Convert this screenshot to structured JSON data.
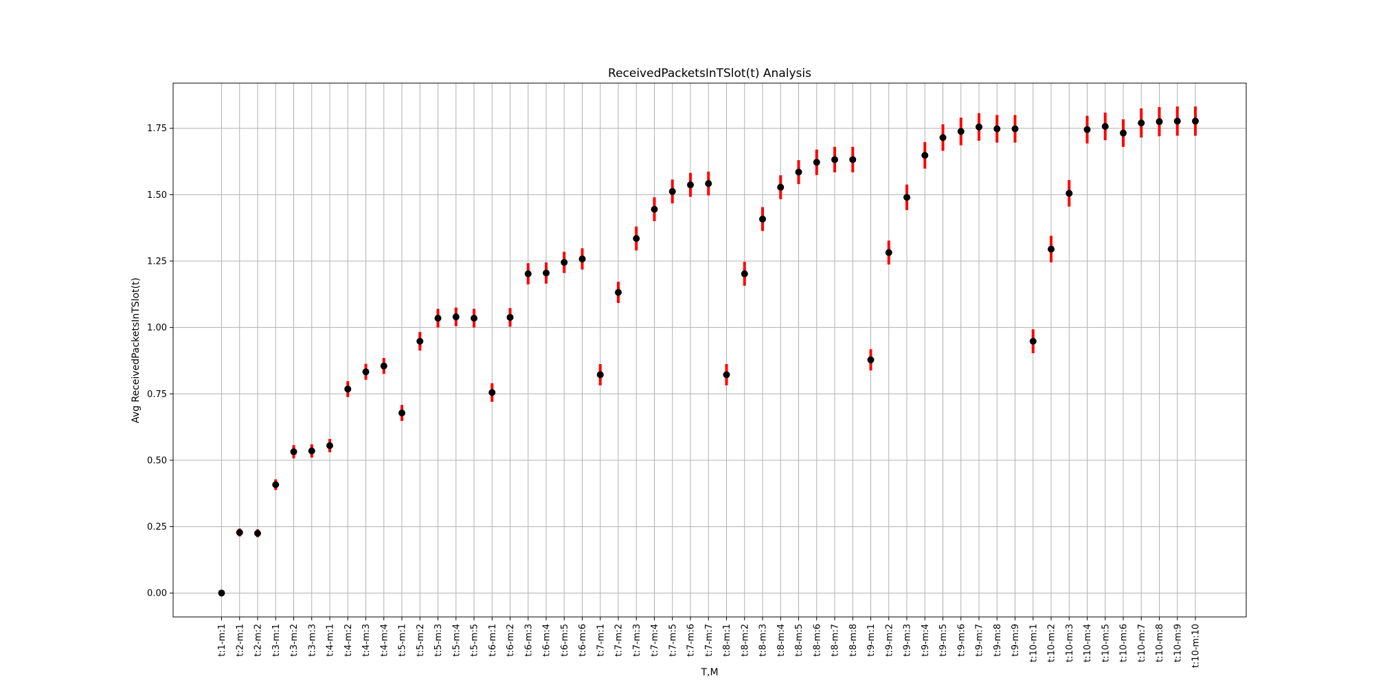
{
  "chart_data": {
    "type": "scatter",
    "title": "ReceivedPacketsInTSlot(t) Analysis",
    "xlabel": "T,M",
    "ylabel": "Avg ReceivedPacketsInTSlot(t)",
    "ylim": [
      -0.09,
      1.92
    ],
    "yticks": [
      0.0,
      0.25,
      0.5,
      0.75,
      1.0,
      1.25,
      1.5,
      1.75
    ],
    "ytick_labels": [
      "0.00",
      "0.25",
      "0.50",
      "0.75",
      "1.00",
      "1.25",
      "1.50",
      "1.75"
    ],
    "grid": true,
    "marker_color": "#000000",
    "errorbar_color": "#ff0000",
    "categories": [
      "t:1-m:1",
      "t:2-m:1",
      "t:2-m:2",
      "t:3-m:1",
      "t:3-m:2",
      "t:3-m:3",
      "t:4-m:1",
      "t:4-m:2",
      "t:4-m:3",
      "t:4-m:4",
      "t:5-m:1",
      "t:5-m:2",
      "t:5-m:3",
      "t:5-m:4",
      "t:5-m:5",
      "t:6-m:1",
      "t:6-m:2",
      "t:6-m:3",
      "t:6-m:4",
      "t:6-m:5",
      "t:6-m:6",
      "t:7-m:1",
      "t:7-m:2",
      "t:7-m:3",
      "t:7-m:4",
      "t:7-m:5",
      "t:7-m:6",
      "t:7-m:7",
      "t:8-m:1",
      "t:8-m:2",
      "t:8-m:3",
      "t:8-m:4",
      "t:8-m:5",
      "t:8-m:6",
      "t:8-m:7",
      "t:8-m:8",
      "t:9-m:1",
      "t:9-m:2",
      "t:9-m:3",
      "t:9-m:4",
      "t:9-m:5",
      "t:9-m:6",
      "t:9-m:7",
      "t:9-m:8",
      "t:9-m:9",
      "t:10-m:1",
      "t:10-m:2",
      "t:10-m:3",
      "t:10-m:4",
      "t:10-m:5",
      "t:10-m:6",
      "t:10-m:7",
      "t:10-m:8",
      "t:10-m:9",
      "t:10-m:10"
    ],
    "values": [
      0.0,
      0.228,
      0.225,
      0.408,
      0.532,
      0.535,
      0.555,
      0.768,
      0.833,
      0.855,
      0.678,
      0.948,
      1.035,
      1.04,
      1.035,
      0.755,
      1.038,
      1.202,
      1.205,
      1.245,
      1.258,
      0.822,
      1.132,
      1.335,
      1.445,
      1.512,
      1.537,
      1.542,
      0.822,
      1.202,
      1.408,
      1.528,
      1.585,
      1.622,
      1.632,
      1.632,
      0.878,
      1.282,
      1.49,
      1.648,
      1.715,
      1.738,
      1.755,
      1.748,
      1.748,
      0.948,
      1.295,
      1.505,
      1.745,
      1.757,
      1.732,
      1.77,
      1.775,
      1.777,
      1.777
    ],
    "errors": [
      0.005,
      0.015,
      0.015,
      0.02,
      0.025,
      0.025,
      0.025,
      0.03,
      0.03,
      0.03,
      0.03,
      0.035,
      0.035,
      0.035,
      0.035,
      0.035,
      0.035,
      0.04,
      0.04,
      0.04,
      0.04,
      0.04,
      0.04,
      0.045,
      0.045,
      0.045,
      0.045,
      0.045,
      0.04,
      0.045,
      0.045,
      0.045,
      0.045,
      0.048,
      0.048,
      0.048,
      0.04,
      0.045,
      0.048,
      0.05,
      0.05,
      0.052,
      0.052,
      0.052,
      0.052,
      0.045,
      0.05,
      0.05,
      0.052,
      0.052,
      0.052,
      0.055,
      0.055,
      0.055,
      0.055
    ]
  }
}
